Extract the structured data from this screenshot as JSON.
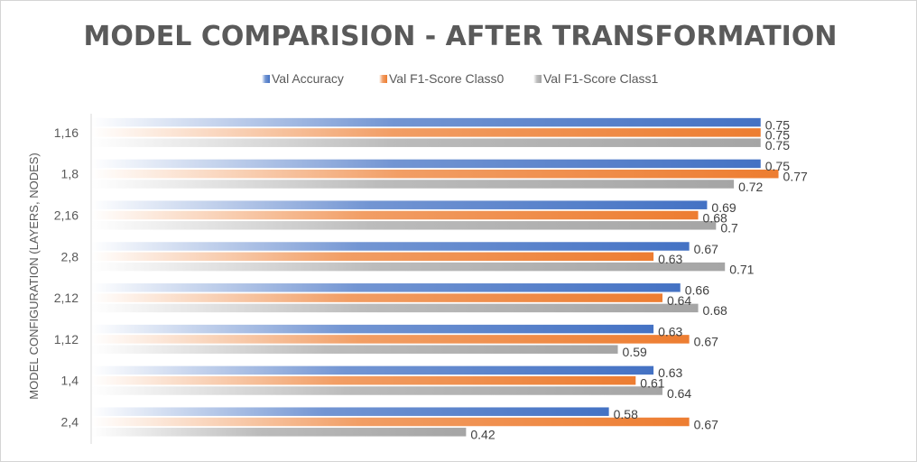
{
  "chart_data": {
    "type": "bar",
    "orientation": "horizontal",
    "title": "MODEL COMPARISION - AFTER TRANSFORMATION",
    "xlabel": "",
    "ylabel": "MODEL CONFIGURATION (LAYERS, NODES)",
    "xlim": [
      0,
      0.82
    ],
    "grid": false,
    "legend_position": "top",
    "categories": [
      "1,16",
      "1,8",
      "2,16",
      "2,8",
      "2,12",
      "1,12",
      "1,4",
      "2,4"
    ],
    "series": [
      {
        "name": "Val Accuracy",
        "color": "#4472C4",
        "values": [
          0.75,
          0.75,
          0.69,
          0.67,
          0.66,
          0.63,
          0.63,
          0.58
        ]
      },
      {
        "name": "Val F1-Score Class0",
        "color": "#ED7D31",
        "values": [
          0.75,
          0.77,
          0.68,
          0.63,
          0.64,
          0.67,
          0.61,
          0.67
        ]
      },
      {
        "name": "Val F1-Score Class1",
        "color": "#A5A5A5",
        "values": [
          0.75,
          0.72,
          0.7,
          0.71,
          0.68,
          0.59,
          0.64,
          0.42
        ]
      }
    ],
    "data_labels": [
      [
        "0.75",
        "0.75",
        "0.69",
        "0.67",
        "0.66",
        "0.63",
        "0.63",
        "0.58"
      ],
      [
        "0.75",
        "0.77",
        "0.68",
        "0.63",
        "0.64",
        "0.67",
        "0.61",
        "0.67"
      ],
      [
        "0.75",
        "0.72",
        "0.7",
        "0.71",
        "0.68",
        "0.59",
        "0.64",
        "0.42"
      ]
    ]
  }
}
